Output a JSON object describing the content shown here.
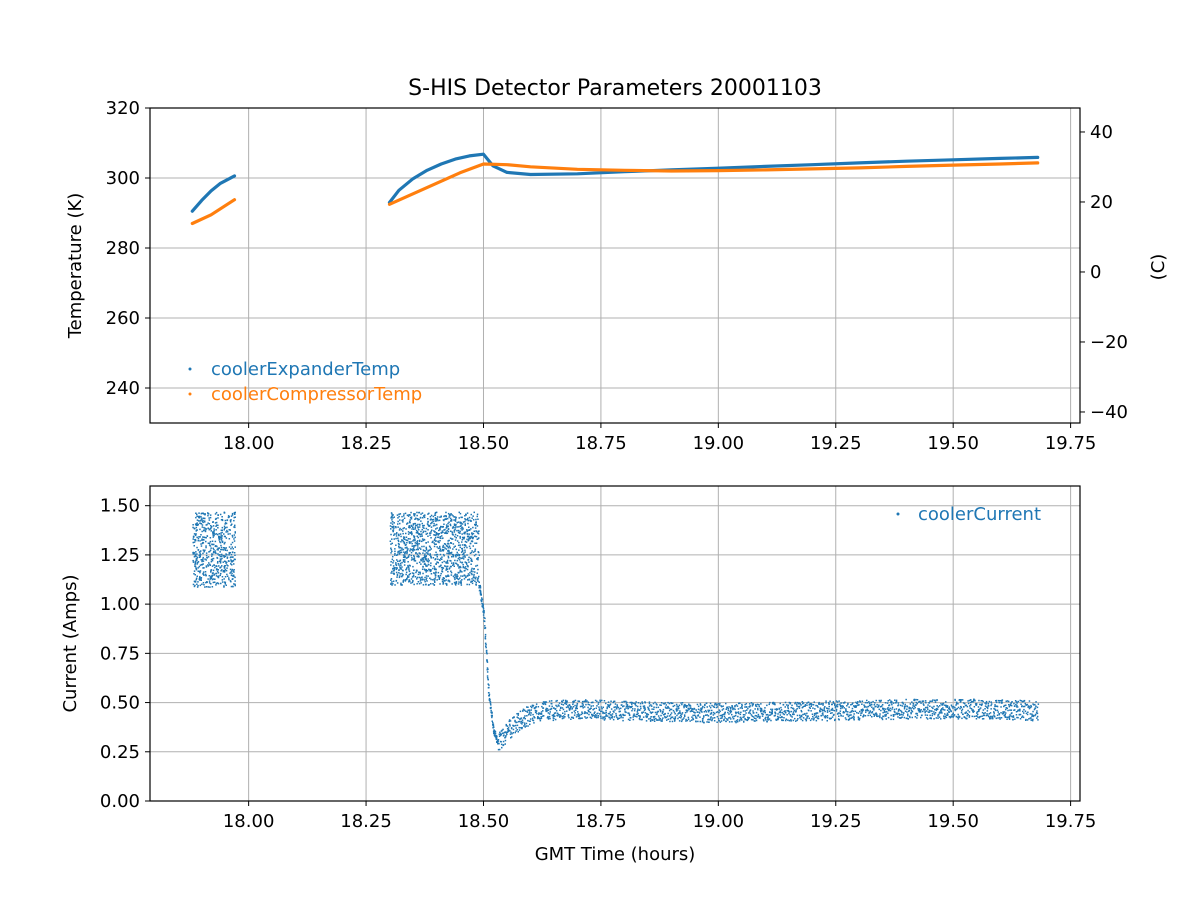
{
  "title": "S-HIS Detector Parameters 20001103",
  "chart_data": [
    {
      "type": "scatter",
      "ylabel": "Temperature (K)",
      "y2label": "(C)",
      "xlim": [
        17.79,
        19.77
      ],
      "ylim": [
        230,
        320
      ],
      "y2lim": [
        -43.15,
        46.85
      ],
      "xticks": [
        "18.00",
        "18.25",
        "18.50",
        "18.75",
        "19.00",
        "19.25",
        "19.50",
        "19.75"
      ],
      "yticks": [
        "240",
        "260",
        "280",
        "300",
        "320"
      ],
      "y2ticks": [
        "−40",
        "−20",
        "0",
        "20",
        "40"
      ],
      "grid": true,
      "legend_position": "lower-left",
      "series": [
        {
          "name": "coolerExpanderTemp",
          "color": "#1f77b4",
          "segments": [
            [
              [
                17.88,
                290.5
              ],
              [
                17.9,
                293.6
              ],
              [
                17.92,
                296.3
              ],
              [
                17.94,
                298.5
              ],
              [
                17.97,
                300.6
              ]
            ],
            [
              [
                18.3,
                293.0
              ],
              [
                18.32,
                296.5
              ],
              [
                18.35,
                299.8
              ],
              [
                18.38,
                302.2
              ],
              [
                18.41,
                304.0
              ],
              [
                18.44,
                305.4
              ],
              [
                18.47,
                306.3
              ],
              [
                18.5,
                306.8
              ],
              [
                18.52,
                303.5
              ],
              [
                18.55,
                301.6
              ],
              [
                18.6,
                301.0
              ],
              [
                18.7,
                301.2
              ],
              [
                18.8,
                301.8
              ],
              [
                18.9,
                302.3
              ],
              [
                19.0,
                302.8
              ],
              [
                19.1,
                303.3
              ],
              [
                19.2,
                303.8
              ],
              [
                19.3,
                304.3
              ],
              [
                19.4,
                304.8
              ],
              [
                19.5,
                305.2
              ],
              [
                19.6,
                305.6
              ],
              [
                19.68,
                305.9
              ]
            ]
          ]
        },
        {
          "name": "coolerCompressorTemp",
          "color": "#ff7f0e",
          "segments": [
            [
              [
                17.88,
                287.0
              ],
              [
                17.92,
                289.5
              ],
              [
                17.97,
                293.8
              ]
            ],
            [
              [
                18.3,
                292.5
              ],
              [
                18.35,
                295.5
              ],
              [
                18.4,
                298.5
              ],
              [
                18.45,
                301.5
              ],
              [
                18.5,
                304.0
              ],
              [
                18.55,
                303.8
              ],
              [
                18.6,
                303.2
              ],
              [
                18.7,
                302.5
              ],
              [
                18.8,
                302.2
              ],
              [
                18.9,
                302.0
              ],
              [
                19.0,
                302.1
              ],
              [
                19.1,
                302.3
              ],
              [
                19.2,
                302.6
              ],
              [
                19.3,
                302.9
              ],
              [
                19.4,
                303.3
              ],
              [
                19.5,
                303.7
              ],
              [
                19.6,
                304.0
              ],
              [
                19.68,
                304.3
              ]
            ]
          ]
        }
      ]
    },
    {
      "type": "scatter",
      "xlabel": "GMT Time (hours)",
      "ylabel": "Current (Amps)",
      "xlim": [
        17.79,
        19.77
      ],
      "ylim": [
        0,
        1.6
      ],
      "xticks": [
        "18.00",
        "18.25",
        "18.50",
        "18.75",
        "19.00",
        "19.25",
        "19.50",
        "19.75"
      ],
      "yticks": [
        "0.00",
        "0.25",
        "0.50",
        "0.75",
        "1.00",
        "1.25",
        "1.50"
      ],
      "grid": true,
      "legend_position": "upper-right",
      "series": [
        {
          "name": "coolerCurrent",
          "color": "#1f77b4",
          "noise_bands": [
            {
              "x": [
                17.88,
                17.97
              ],
              "low": 1.09,
              "high": 1.47
            },
            {
              "x": [
                18.3,
                18.49
              ],
              "low": 1.1,
              "high": 1.47
            }
          ],
          "trend": [
            [
              18.49,
              1.1
            ],
            [
              18.5,
              0.95
            ],
            [
              18.51,
              0.55
            ],
            [
              18.52,
              0.36
            ],
            [
              18.53,
              0.3
            ],
            [
              18.55,
              0.36
            ],
            [
              18.58,
              0.42
            ],
            [
              18.62,
              0.46
            ],
            [
              18.7,
              0.47
            ],
            [
              18.8,
              0.46
            ],
            [
              19.0,
              0.45
            ],
            [
              19.2,
              0.46
            ],
            [
              19.4,
              0.47
            ],
            [
              19.6,
              0.47
            ],
            [
              19.68,
              0.46
            ]
          ],
          "spread": 0.05
        }
      ]
    }
  ]
}
